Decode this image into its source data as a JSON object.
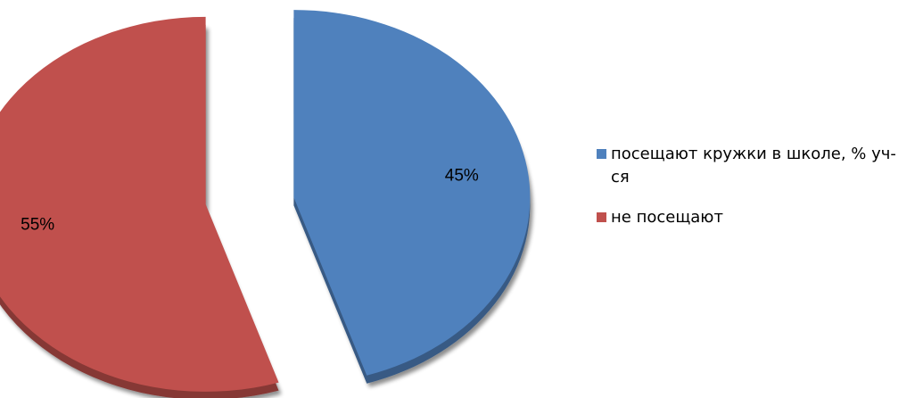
{
  "chart_data": {
    "type": "pie",
    "style": "3d-exploded",
    "title": "",
    "categories": [
      "посещают кружки в школе, % уч-ся",
      "не посещают"
    ],
    "values": [
      45,
      55
    ],
    "data_labels": [
      "45%",
      "55%"
    ],
    "colors": [
      "#4f81bd",
      "#c0504d"
    ],
    "legend_position": "right"
  },
  "legend": {
    "items": [
      {
        "label": "посещают кружки в школе, % уч-ся",
        "color": "#4f81bd"
      },
      {
        "label": "не посещают",
        "color": "#c0504d"
      }
    ]
  }
}
